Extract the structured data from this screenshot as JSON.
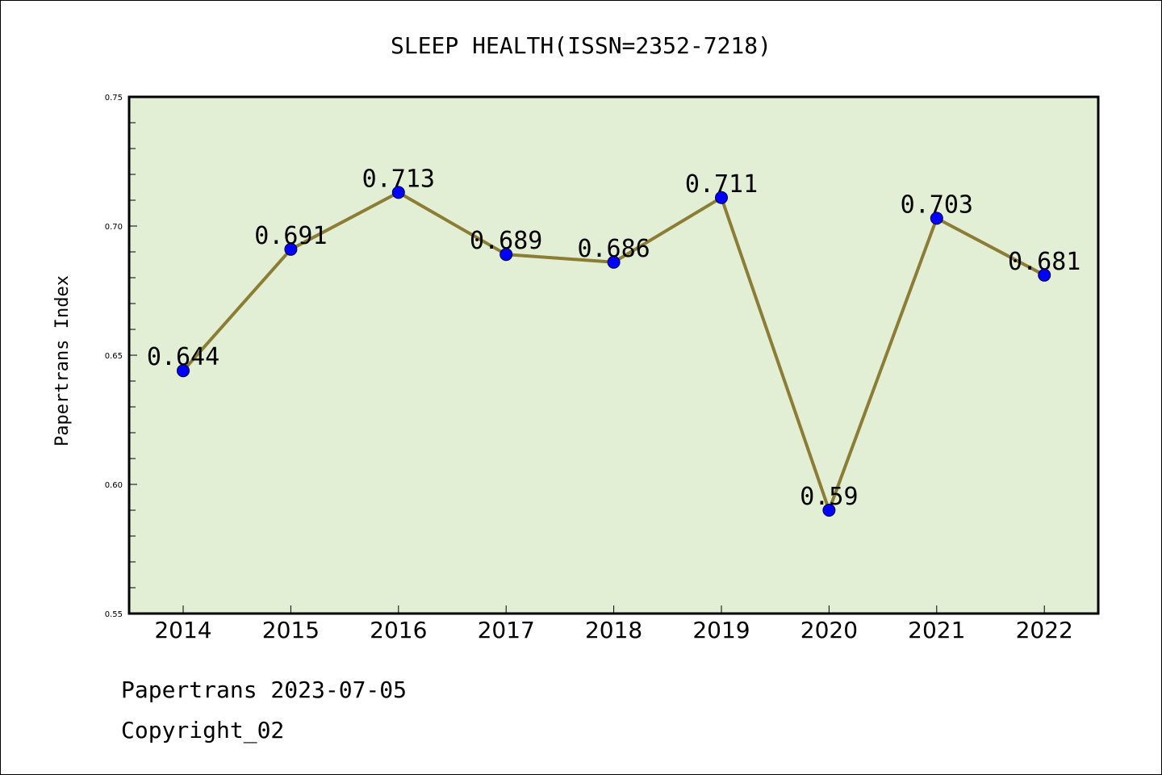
{
  "chart_data": {
    "type": "line",
    "title": "SLEEP HEALTH(ISSN=2352-7218)",
    "ylabel": "Papertrans Index",
    "xlabel": "",
    "categories": [
      "2014",
      "2015",
      "2016",
      "2017",
      "2018",
      "2019",
      "2020",
      "2021",
      "2022"
    ],
    "values": [
      0.644,
      0.691,
      0.713,
      0.689,
      0.686,
      0.711,
      0.59,
      0.703,
      0.681
    ],
    "data_labels": [
      "0.644",
      "0.691",
      "0.713",
      "0.689",
      "0.686",
      "0.711",
      "0.59",
      "0.703",
      "0.681"
    ],
    "ylim": [
      0.55,
      0.75
    ],
    "yticks": [
      0.55,
      0.6,
      0.65,
      0.7,
      0.75
    ],
    "ytick_labels": [
      "0.55",
      "0.60",
      "0.65",
      "0.70",
      "0.75"
    ],
    "grid": false,
    "colors": {
      "plot_background": "#e2efd5",
      "line": "#8b7d35",
      "marker": "#0000ff"
    }
  },
  "footer": {
    "line1": "Papertrans 2023-07-05",
    "line2": "Copyright_02"
  }
}
